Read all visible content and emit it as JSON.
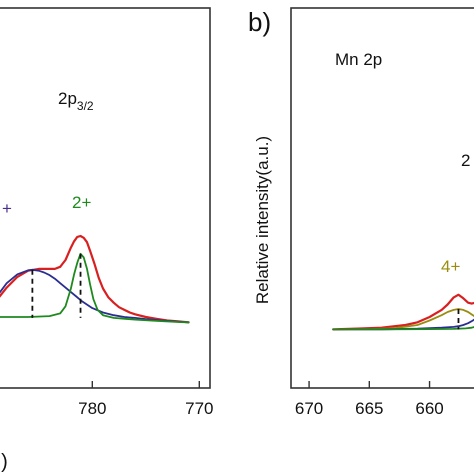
{
  "chart_data": [
    {
      "type": "line",
      "panel": "a",
      "panel_label": "",
      "title": "",
      "xlabel": "",
      "ylabel": "",
      "x_reversed": true,
      "xlim": [
        789,
        769
      ],
      "ylim": [
        0,
        1
      ],
      "x_ticks": [
        780,
        770
      ],
      "x_tick_labels": [
        "780",
        "770"
      ],
      "grid": false,
      "annotations": [
        {
          "text": "2p3/2",
          "main": "2p",
          "sub": "3/2",
          "x": 777.8,
          "y": 0.86,
          "color": "#111111"
        },
        {
          "text": "2+",
          "x": 778.8,
          "y": 0.45,
          "color": "#1e8a1e"
        },
        {
          "text": "+",
          "x": 786.3,
          "y": 0.41,
          "color": "#4a2f8f"
        }
      ],
      "peak_markers": [
        {
          "x": 785.6,
          "y_top": 0.355,
          "y_bottom": 0.085
        },
        {
          "x": 781.1,
          "y_top": 0.445,
          "y_bottom": 0.085
        }
      ],
      "series": [
        {
          "color": "#d92020",
          "x": [
            789,
            788,
            787,
            786,
            785,
            784,
            783.5,
            783,
            782.5,
            782,
            781.7,
            781.4,
            781.1,
            780.8,
            780.5,
            780.2,
            779.8,
            779.4,
            779,
            778.5,
            778,
            777.5,
            777,
            776.5,
            776,
            775,
            774,
            773,
            772,
            771
          ],
          "y": [
            0.18,
            0.255,
            0.315,
            0.35,
            0.36,
            0.36,
            0.36,
            0.372,
            0.41,
            0.48,
            0.515,
            0.54,
            0.545,
            0.535,
            0.51,
            0.46,
            0.39,
            0.31,
            0.25,
            0.2,
            0.17,
            0.145,
            0.13,
            0.115,
            0.105,
            0.09,
            0.08,
            0.07,
            0.065,
            0.06
          ]
        },
        {
          "color": "#2a2f8f",
          "x": [
            789,
            788,
            787,
            786,
            785.6,
            785,
            784.5,
            784,
            783.5,
            783,
            782.5,
            782,
            781.5,
            781,
            780,
            779,
            778,
            777,
            776,
            775,
            774,
            773,
            772,
            771
          ],
          "y": [
            0.2,
            0.28,
            0.33,
            0.352,
            0.355,
            0.35,
            0.34,
            0.325,
            0.305,
            0.28,
            0.255,
            0.23,
            0.205,
            0.18,
            0.14,
            0.115,
            0.1,
            0.09,
            0.085,
            0.078,
            0.073,
            0.068,
            0.064,
            0.06
          ]
        },
        {
          "color": "#1e8a1e",
          "x": [
            789,
            786,
            784,
            783,
            782.5,
            782,
            781.7,
            781.4,
            781.1,
            780.8,
            780.5,
            780.2,
            779.9,
            779.5,
            779,
            778,
            776,
            774,
            772,
            771
          ],
          "y": [
            0.09,
            0.09,
            0.095,
            0.11,
            0.15,
            0.25,
            0.33,
            0.395,
            0.445,
            0.425,
            0.36,
            0.27,
            0.19,
            0.13,
            0.1,
            0.085,
            0.075,
            0.068,
            0.062,
            0.06
          ]
        }
      ]
    },
    {
      "type": "line",
      "panel": "b",
      "panel_label": "b)",
      "title": "Mn 2p",
      "xlabel": "",
      "ylabel": "Relative intensity(a.u.)",
      "x_reversed": true,
      "xlim": [
        671.5,
        654.9
      ],
      "ylim": [
        0,
        1
      ],
      "x_ticks": [
        670,
        665,
        660
      ],
      "x_tick_labels": [
        "670",
        "665",
        "660"
      ],
      "grid": false,
      "annotations": [
        {
          "text": "4+",
          "x": 658.8,
          "y": 0.4,
          "color": "#9a8c10"
        },
        {
          "text": "2",
          "x": 655.5,
          "y": 0.82,
          "color": "#111111"
        }
      ],
      "peak_markers": [
        {
          "x": 657.6,
          "y_top": 0.135,
          "y_bottom": 0.02
        }
      ],
      "series": [
        {
          "color": "#d92020",
          "x": [
            668,
            666,
            664,
            662,
            661,
            660,
            659,
            658.5,
            658,
            657.6,
            657.2,
            656.8,
            656.5,
            656.2,
            655.9
          ],
          "y": [
            0.02,
            0.025,
            0.03,
            0.045,
            0.06,
            0.09,
            0.13,
            0.16,
            0.2,
            0.215,
            0.195,
            0.17,
            0.165,
            0.17,
            0.19
          ]
        },
        {
          "color": "#9a8c10",
          "x": [
            668,
            665,
            663,
            661,
            660,
            659,
            658.5,
            658,
            657.6,
            657.2,
            656.8,
            656.4,
            656,
            655.9
          ],
          "y": [
            0.02,
            0.022,
            0.026,
            0.045,
            0.07,
            0.1,
            0.118,
            0.13,
            0.135,
            0.13,
            0.118,
            0.1,
            0.08,
            0.075
          ]
        },
        {
          "color": "#2a2f8f",
          "x": [
            668,
            664,
            661,
            659,
            658,
            657.6,
            657.2,
            656.8,
            656.4,
            656,
            655.9
          ],
          "y": [
            0.02,
            0.021,
            0.024,
            0.03,
            0.034,
            0.038,
            0.045,
            0.055,
            0.07,
            0.09,
            0.1
          ]
        },
        {
          "color": "#1e8a1e",
          "x": [
            668,
            664,
            660,
            658,
            657,
            656.5,
            656,
            655.9
          ],
          "y": [
            0.02,
            0.021,
            0.022,
            0.023,
            0.026,
            0.03,
            0.04,
            0.045
          ]
        }
      ]
    }
  ],
  "figure": {
    "bottom_left_label": "d)",
    "frame_color": "#333333",
    "text_color": "#111111",
    "dash_color": "#111111"
  }
}
